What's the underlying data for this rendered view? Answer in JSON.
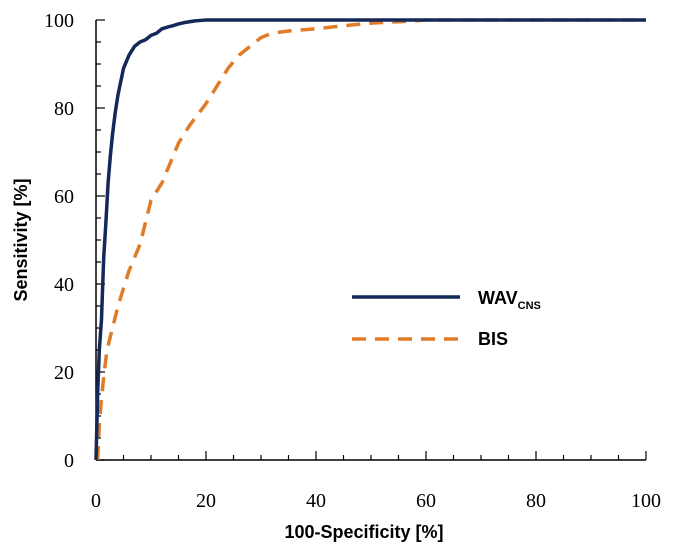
{
  "chart_data": {
    "type": "line",
    "title": "",
    "xlabel": "100-Specificity [%]",
    "ylabel": "Sensitivity [%]",
    "xlim": [
      0,
      100
    ],
    "ylim": [
      0,
      100
    ],
    "xticks": [
      "0",
      "20",
      "40",
      "60",
      "80",
      "100"
    ],
    "yticks": [
      "0",
      "20",
      "40",
      "60",
      "80",
      "100"
    ],
    "grid": false,
    "legend_position": "center-right",
    "series": [
      {
        "name": "WAV",
        "name_subscript": "CNS",
        "color": "#14285a",
        "line_style": "solid",
        "x": [
          0,
          0.3,
          0.6,
          1,
          1.4,
          1.8,
          2.2,
          2.6,
          3,
          3.5,
          4,
          4.5,
          5,
          6,
          7,
          8,
          9,
          10,
          11,
          12,
          13,
          14,
          15,
          16,
          17,
          18,
          19,
          20,
          30,
          40,
          50,
          60,
          70,
          80,
          90,
          100
        ],
        "y": [
          0,
          15,
          25,
          32,
          46,
          54,
          63,
          69,
          74,
          79,
          83,
          86,
          89,
          92,
          94,
          95,
          95.5,
          96.5,
          97,
          98,
          98.4,
          98.7,
          99.1,
          99.4,
          99.6,
          99.8,
          99.9,
          100,
          100,
          100,
          100,
          100,
          100,
          100,
          100,
          100
        ]
      },
      {
        "name": "BIS",
        "color": "#e07b28",
        "line_style": "dashed",
        "x": [
          0.3,
          0.6,
          1,
          1.5,
          2,
          3,
          4,
          5,
          6,
          7,
          8,
          9,
          10,
          11,
          12,
          13,
          15,
          17,
          20,
          22,
          24,
          26,
          28,
          30,
          32,
          35,
          40,
          45,
          50,
          55,
          60,
          70,
          80,
          90,
          100
        ],
        "y": [
          0,
          8,
          14,
          20,
          25,
          30,
          35,
          39,
          43,
          46,
          49,
          54,
          59,
          61,
          63,
          66,
          72,
          76,
          81,
          85,
          89,
          92,
          94,
          96,
          97,
          97.5,
          98,
          98.7,
          99.3,
          99.6,
          100,
          100,
          100,
          100,
          100
        ]
      }
    ]
  }
}
